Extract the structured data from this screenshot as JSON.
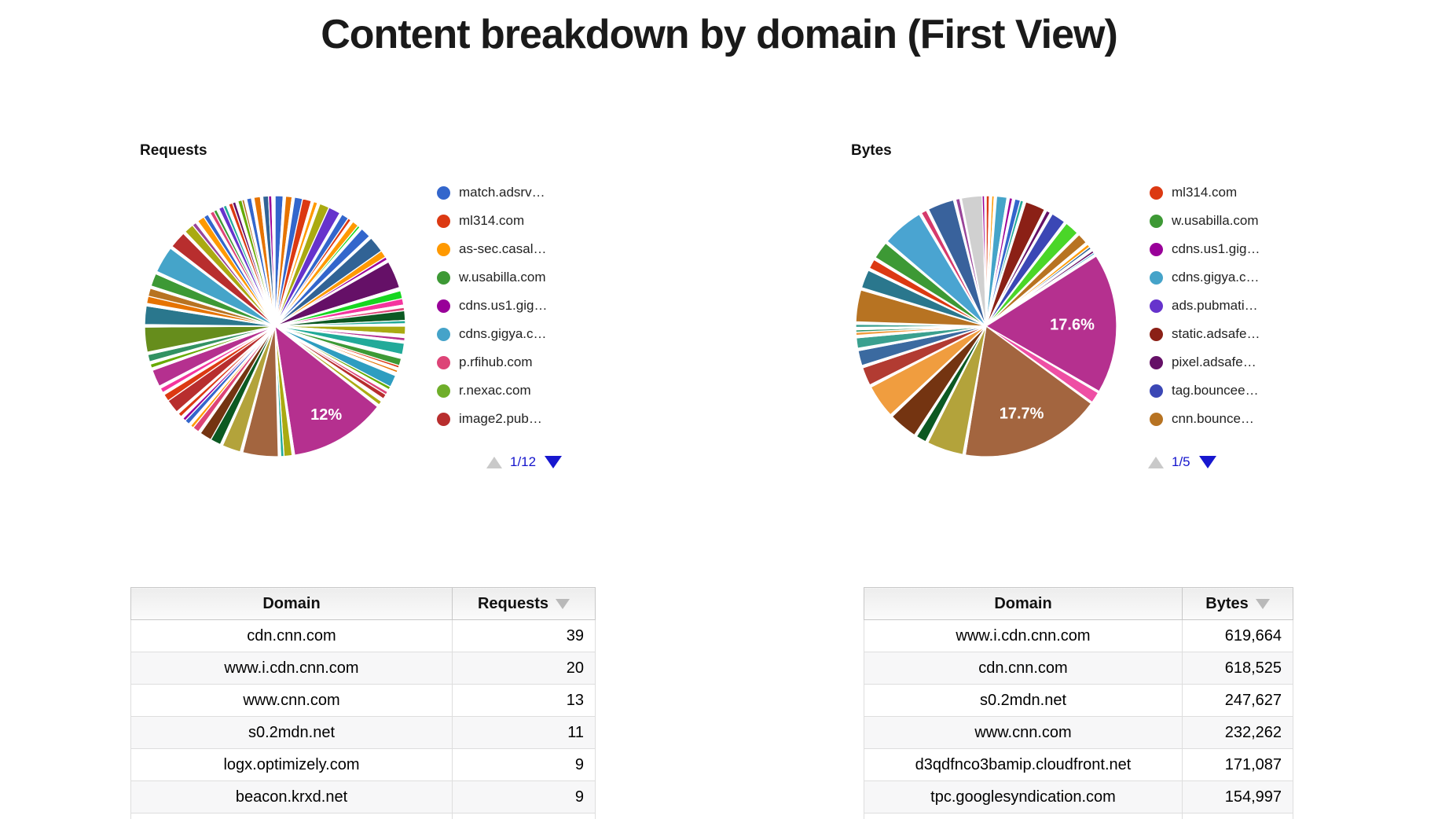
{
  "title": "Content breakdown by domain (First View)",
  "chart_data": [
    {
      "type": "pie",
      "name": "requests",
      "title": "Requests",
      "legend_position": "right",
      "legend_page": "1/12",
      "visible_slice_labels": [
        "12%"
      ],
      "legend_entries": [
        {
          "label": "match.adsrv…",
          "color": "#3366cc"
        },
        {
          "label": "ml314.com",
          "color": "#dc3912"
        },
        {
          "label": "as-sec.casal…",
          "color": "#ff9900"
        },
        {
          "label": "w.usabilla.com",
          "color": "#3d9935"
        },
        {
          "label": "cdns.us1.gig…",
          "color": "#990099"
        },
        {
          "label": "cdns.gigya.c…",
          "color": "#45a3c9"
        },
        {
          "label": "p.rfihub.com",
          "color": "#dd4477"
        },
        {
          "label": "r.nexac.com",
          "color": "#6fae2a"
        },
        {
          "label": "image2.pub…",
          "color": "#b82e2e"
        }
      ],
      "slices": [
        [
          1.0,
          "#3366cc"
        ],
        [
          0.3,
          "#ffffff"
        ],
        [
          0.8,
          "#e67300"
        ],
        [
          0.3,
          "#ffffff"
        ],
        [
          1.0,
          "#3366cc"
        ],
        [
          1.1,
          "#dc3912"
        ],
        [
          0.3,
          "#ffffff"
        ],
        [
          0.5,
          "#ff9900"
        ],
        [
          0.3,
          "#ffffff"
        ],
        [
          1.2,
          "#aaaa11"
        ],
        [
          1.5,
          "#6633cc"
        ],
        [
          0.3,
          "#ffffff"
        ],
        [
          0.9,
          "#3366cc"
        ],
        [
          0.4,
          "#dc3912"
        ],
        [
          0.3,
          "#ffffff"
        ],
        [
          0.8,
          "#ff9900"
        ],
        [
          0.3,
          "#16d620"
        ],
        [
          0.3,
          "#ffffff"
        ],
        [
          1.3,
          "#3366cc"
        ],
        [
          0.3,
          "#ffffff"
        ],
        [
          2.0,
          "#316395"
        ],
        [
          0.9,
          "#ff9900"
        ],
        [
          0.4,
          "#990099"
        ],
        [
          0.3,
          "#ffffff"
        ],
        [
          3.4,
          "#651067"
        ],
        [
          0.4,
          "#ffffff"
        ],
        [
          1.0,
          "#16d620"
        ],
        [
          0.8,
          "#f4359e"
        ],
        [
          0.3,
          "#ffffff"
        ],
        [
          0.4,
          "#dd4477"
        ],
        [
          1.2,
          "#0c5922"
        ],
        [
          0.4,
          "#22aa99"
        ],
        [
          0.3,
          "#ffffff"
        ],
        [
          1.0,
          "#aaaa11"
        ],
        [
          0.4,
          "#ffffff"
        ],
        [
          0.4,
          "#b5308f"
        ],
        [
          0.3,
          "#ffffff"
        ],
        [
          1.4,
          "#22aa99"
        ],
        [
          0.5,
          "#ffffff"
        ],
        [
          0.9,
          "#3d9935"
        ],
        [
          0.3,
          "#dc3912"
        ],
        [
          0.3,
          "#ffffff"
        ],
        [
          0.3,
          "#e67300"
        ],
        [
          0.4,
          "#ffffff"
        ],
        [
          1.5,
          "#2e9dc0"
        ],
        [
          0.4,
          "#66aa00"
        ],
        [
          0.3,
          "#ffffff"
        ],
        [
          0.4,
          "#dd4477"
        ],
        [
          0.6,
          "#b82e2e"
        ],
        [
          0.4,
          "#ffffff"
        ],
        [
          0.5,
          "#aaaa11"
        ],
        [
          0.3,
          "#ffffff"
        ],
        [
          12.0,
          "#b5308f",
          "12%",
          0.78
        ],
        [
          0.3,
          "#ffffff"
        ],
        [
          1.0,
          "#aaaa11"
        ],
        [
          0.4,
          "#22aa99"
        ],
        [
          0.3,
          "#ffffff"
        ],
        [
          4.4,
          "#a3653f"
        ],
        [
          0.3,
          "#ffffff"
        ],
        [
          2.3,
          "#b3a33b"
        ],
        [
          0.3,
          "#ffffff"
        ],
        [
          1.3,
          "#0c5922"
        ],
        [
          1.5,
          "#743411"
        ],
        [
          0.3,
          "#ffffff"
        ],
        [
          0.8,
          "#dd4477"
        ],
        [
          0.4,
          "#ff9900"
        ],
        [
          0.3,
          "#ffffff"
        ],
        [
          0.6,
          "#3366cc"
        ],
        [
          0.4,
          "#990099"
        ],
        [
          0.3,
          "#ffffff"
        ],
        [
          0.5,
          "#dc3912"
        ],
        [
          0.3,
          "#ffffff"
        ],
        [
          1.7,
          "#b82e2e"
        ],
        [
          0.9,
          "#dc3912"
        ],
        [
          0.3,
          "#ffffff"
        ],
        [
          0.6,
          "#f4359e"
        ],
        [
          0.3,
          "#ffffff"
        ],
        [
          2.1,
          "#b5308f"
        ],
        [
          0.3,
          "#ffffff"
        ],
        [
          0.5,
          "#66aa00"
        ],
        [
          0.3,
          "#ffffff"
        ],
        [
          0.9,
          "#329262"
        ],
        [
          0.3,
          "#ffffff"
        ],
        [
          3.1,
          "#668d1c"
        ],
        [
          0.3,
          "#ffffff"
        ],
        [
          2.3,
          "#2a778d"
        ],
        [
          0.3,
          "#ffffff"
        ],
        [
          0.9,
          "#e67300"
        ],
        [
          1.0,
          "#b77322"
        ],
        [
          0.3,
          "#ffffff"
        ],
        [
          1.6,
          "#3d9935"
        ],
        [
          0.3,
          "#ffffff"
        ],
        [
          3.3,
          "#45a4c9"
        ],
        [
          0.3,
          "#ffffff"
        ],
        [
          2.1,
          "#b82e2e"
        ],
        [
          0.3,
          "#ffffff"
        ],
        [
          1.2,
          "#aaaa11"
        ],
        [
          0.5,
          "#994499"
        ],
        [
          0.3,
          "#ffffff"
        ],
        [
          0.9,
          "#ff9900"
        ],
        [
          0.6,
          "#3366cc"
        ],
        [
          0.3,
          "#ffffff"
        ],
        [
          0.5,
          "#dd4477"
        ],
        [
          0.4,
          "#3d9935"
        ],
        [
          0.3,
          "#ffffff"
        ],
        [
          0.6,
          "#6633cc"
        ],
        [
          0.4,
          "#22aa99"
        ],
        [
          0.3,
          "#ffffff"
        ],
        [
          0.5,
          "#dc3912"
        ],
        [
          0.4,
          "#651067"
        ],
        [
          0.3,
          "#ffffff"
        ],
        [
          0.5,
          "#66aa00"
        ],
        [
          0.3,
          "#b77322"
        ],
        [
          0.3,
          "#ffffff"
        ],
        [
          0.6,
          "#3366cc"
        ],
        [
          0.3,
          "#ffffff"
        ],
        [
          0.8,
          "#e67300"
        ],
        [
          0.3,
          "#ffffff"
        ],
        [
          0.7,
          "#316395"
        ],
        [
          0.4,
          "#990099"
        ],
        [
          0.4,
          "#ffffff"
        ]
      ],
      "table": {
        "headers": [
          "Domain",
          "Requests"
        ],
        "sort_col": 1,
        "rows": [
          [
            "cdn.cnn.com",
            "39"
          ],
          [
            "www.i.cdn.cnn.com",
            "20"
          ],
          [
            "www.cnn.com",
            "13"
          ],
          [
            "s0.2mdn.net",
            "11"
          ],
          [
            "logx.optimizely.com",
            "9"
          ],
          [
            "beacon.krxd.net",
            "9"
          ]
        ]
      }
    },
    {
      "type": "pie",
      "name": "bytes",
      "title": "Bytes",
      "legend_position": "right",
      "legend_page": "1/5",
      "visible_slice_labels": [
        "17.6%",
        "17.7%"
      ],
      "legend_entries": [
        {
          "label": "ml314.com",
          "color": "#dc3912"
        },
        {
          "label": "w.usabilla.com",
          "color": "#3d9935"
        },
        {
          "label": "cdns.us1.gig…",
          "color": "#990099"
        },
        {
          "label": "cdns.gigya.c…",
          "color": "#45a3c9"
        },
        {
          "label": "ads.pubmati…",
          "color": "#6633cc"
        },
        {
          "label": "static.adsafe…",
          "color": "#8b2016"
        },
        {
          "label": "pixel.adsafe…",
          "color": "#651067"
        },
        {
          "label": "tag.bouncee…",
          "color": "#3b47b5"
        },
        {
          "label": "cnn.bounce…",
          "color": "#b77322"
        }
      ],
      "slices": [
        [
          0.4,
          "#dc3912"
        ],
        [
          0.3,
          "#ffffff"
        ],
        [
          0.3,
          "#ff9900"
        ],
        [
          0.3,
          "#ffffff"
        ],
        [
          1.3,
          "#45a4c9"
        ],
        [
          0.3,
          "#ffffff"
        ],
        [
          0.4,
          "#990099"
        ],
        [
          0.3,
          "#ffffff"
        ],
        [
          0.7,
          "#3366cc"
        ],
        [
          0.4,
          "#22aa99"
        ],
        [
          0.3,
          "#ffffff"
        ],
        [
          2.5,
          "#8b2016"
        ],
        [
          0.3,
          "#ffffff"
        ],
        [
          0.5,
          "#651067"
        ],
        [
          0.3,
          "#ffffff"
        ],
        [
          1.8,
          "#3b47b5"
        ],
        [
          0.3,
          "#ffffff"
        ],
        [
          1.8,
          "#4ad628"
        ],
        [
          0.3,
          "#ffffff"
        ],
        [
          1.3,
          "#b77322"
        ],
        [
          0.3,
          "#ffffff"
        ],
        [
          0.4,
          "#ff9900"
        ],
        [
          0.3,
          "#316395"
        ],
        [
          0.3,
          "#ffffff"
        ],
        [
          0.3,
          "#651067"
        ],
        [
          0.2,
          "#0099c6"
        ],
        [
          0.3,
          "#ffffff"
        ],
        [
          17.6,
          "#b5308f",
          "17.6%",
          0.66
        ],
        [
          0.2,
          "#ffffff"
        ],
        [
          1.4,
          "#ee4fa4"
        ],
        [
          0.2,
          "#ffffff"
        ],
        [
          17.7,
          "#a3653f",
          "17.7%",
          0.72
        ],
        [
          0.3,
          "#ffffff"
        ],
        [
          4.6,
          "#b3a33b"
        ],
        [
          0.3,
          "#ffffff"
        ],
        [
          1.3,
          "#0c5922"
        ],
        [
          0.3,
          "#ffffff"
        ],
        [
          3.6,
          "#743411"
        ],
        [
          0.3,
          "#ffffff"
        ],
        [
          4.2,
          "#f09d3f"
        ],
        [
          0.3,
          "#ffffff"
        ],
        [
          2.3,
          "#b23b32"
        ],
        [
          0.3,
          "#ffffff"
        ],
        [
          1.9,
          "#3b6aa0"
        ],
        [
          0.3,
          "#ffffff"
        ],
        [
          1.3,
          "#3aa08f"
        ],
        [
          0.3,
          "#ffffff"
        ],
        [
          0.4,
          "#f09d3f"
        ],
        [
          0.3,
          "#329262"
        ],
        [
          0.3,
          "#ffffff"
        ],
        [
          0.4,
          "#3aa08f"
        ],
        [
          0.3,
          "#ffffff"
        ],
        [
          4.0,
          "#b77322"
        ],
        [
          0.3,
          "#ffffff"
        ],
        [
          2.3,
          "#2a778d"
        ],
        [
          0.3,
          "#ffffff"
        ],
        [
          1.2,
          "#dc3912"
        ],
        [
          0.3,
          "#ffffff"
        ],
        [
          2.2,
          "#3d9935"
        ],
        [
          0.3,
          "#ffffff"
        ],
        [
          5.2,
          "#4aa4d1"
        ],
        [
          0.3,
          "#ffffff"
        ],
        [
          0.7,
          "#d63a6c"
        ],
        [
          0.3,
          "#ffffff"
        ],
        [
          3.3,
          "#39629c"
        ],
        [
          0.3,
          "#ffffff"
        ],
        [
          0.5,
          "#994499"
        ],
        [
          0.2,
          "#ffffff"
        ],
        [
          2.6,
          "#d0d0d0"
        ],
        [
          0.3,
          "#990099"
        ],
        [
          0.2,
          "#ffffff"
        ]
      ],
      "table": {
        "headers": [
          "Domain",
          "Bytes"
        ],
        "sort_col": 1,
        "rows": [
          [
            "www.i.cdn.cnn.com",
            "619,664"
          ],
          [
            "cdn.cnn.com",
            "618,525"
          ],
          [
            "s0.2mdn.net",
            "247,627"
          ],
          [
            "www.cnn.com",
            "232,262"
          ],
          [
            "d3qdfnco3bamip.cloudfront.net",
            "171,087"
          ],
          [
            "tpc.googlesyndication.com",
            "154,997"
          ]
        ]
      }
    }
  ]
}
